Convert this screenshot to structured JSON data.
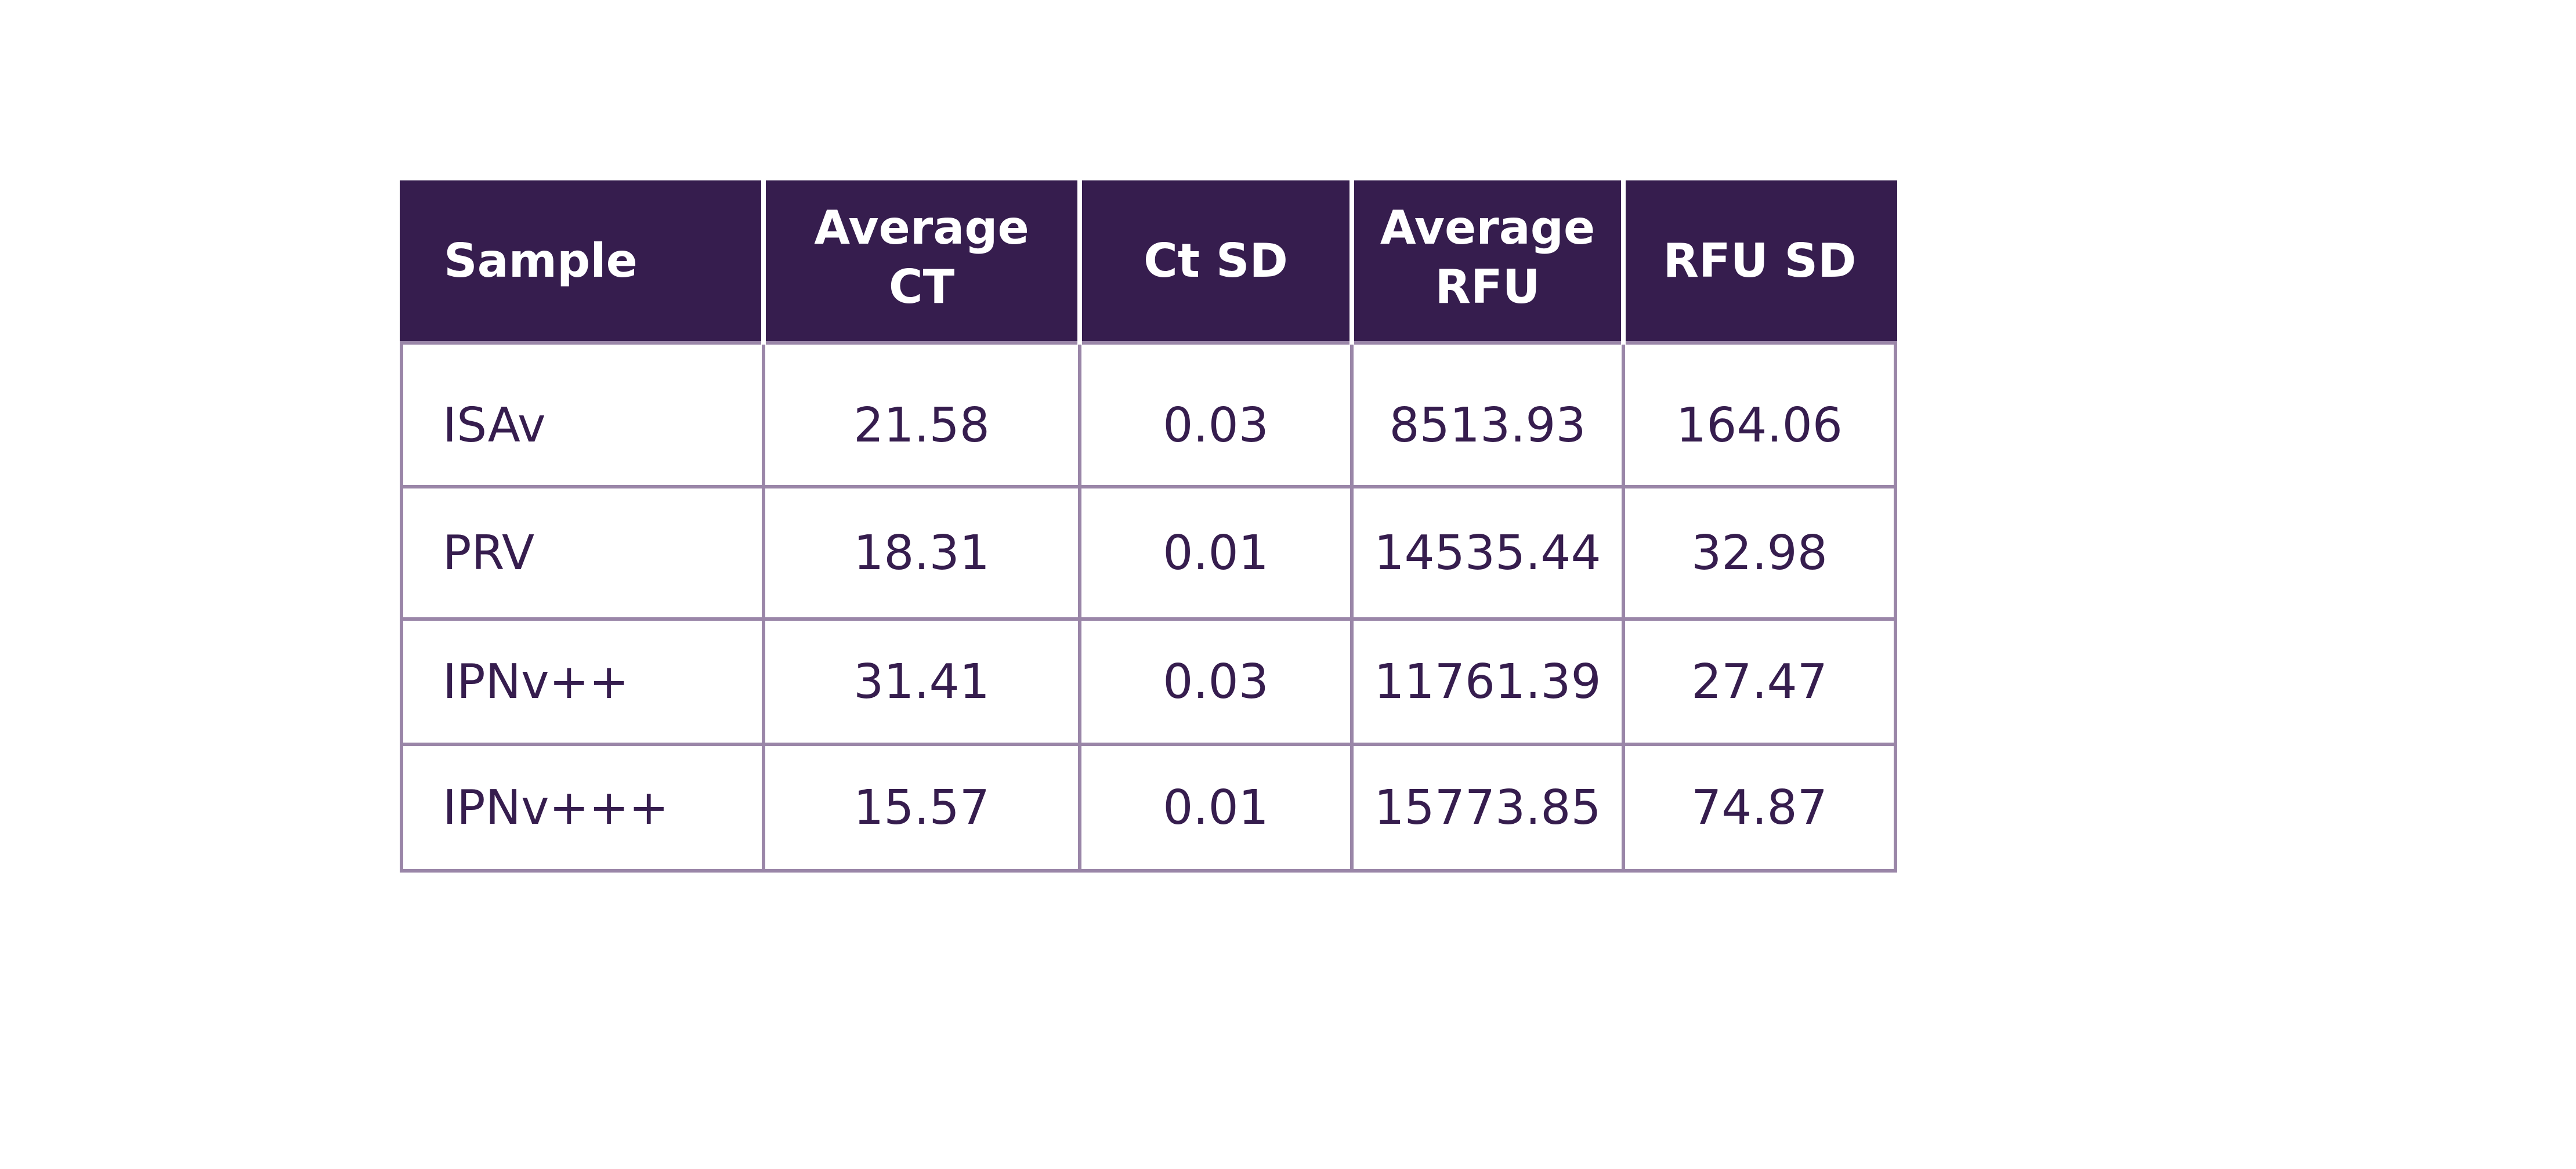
{
  "table": {
    "headers": [
      "Sample",
      "Average\nCT",
      "Ct SD",
      "Average\nRFU",
      "RFU SD"
    ],
    "rows": [
      [
        "ISAv",
        "21.58",
        "0.03",
        "8513.93",
        "164.06"
      ],
      [
        "PRV",
        "18.31",
        "0.01",
        "14535.44",
        "32.98"
      ],
      [
        "IPNv++",
        "31.41",
        "0.03",
        "11761.39",
        "27.47"
      ],
      [
        "IPNv+++",
        "15.57",
        "0.01",
        "15773.85",
        "74.87"
      ]
    ]
  },
  "colors": {
    "header_bg": "#361d4e",
    "header_text": "#ffffff",
    "cell_text": "#361d4e",
    "grid": "#9a86a8"
  }
}
